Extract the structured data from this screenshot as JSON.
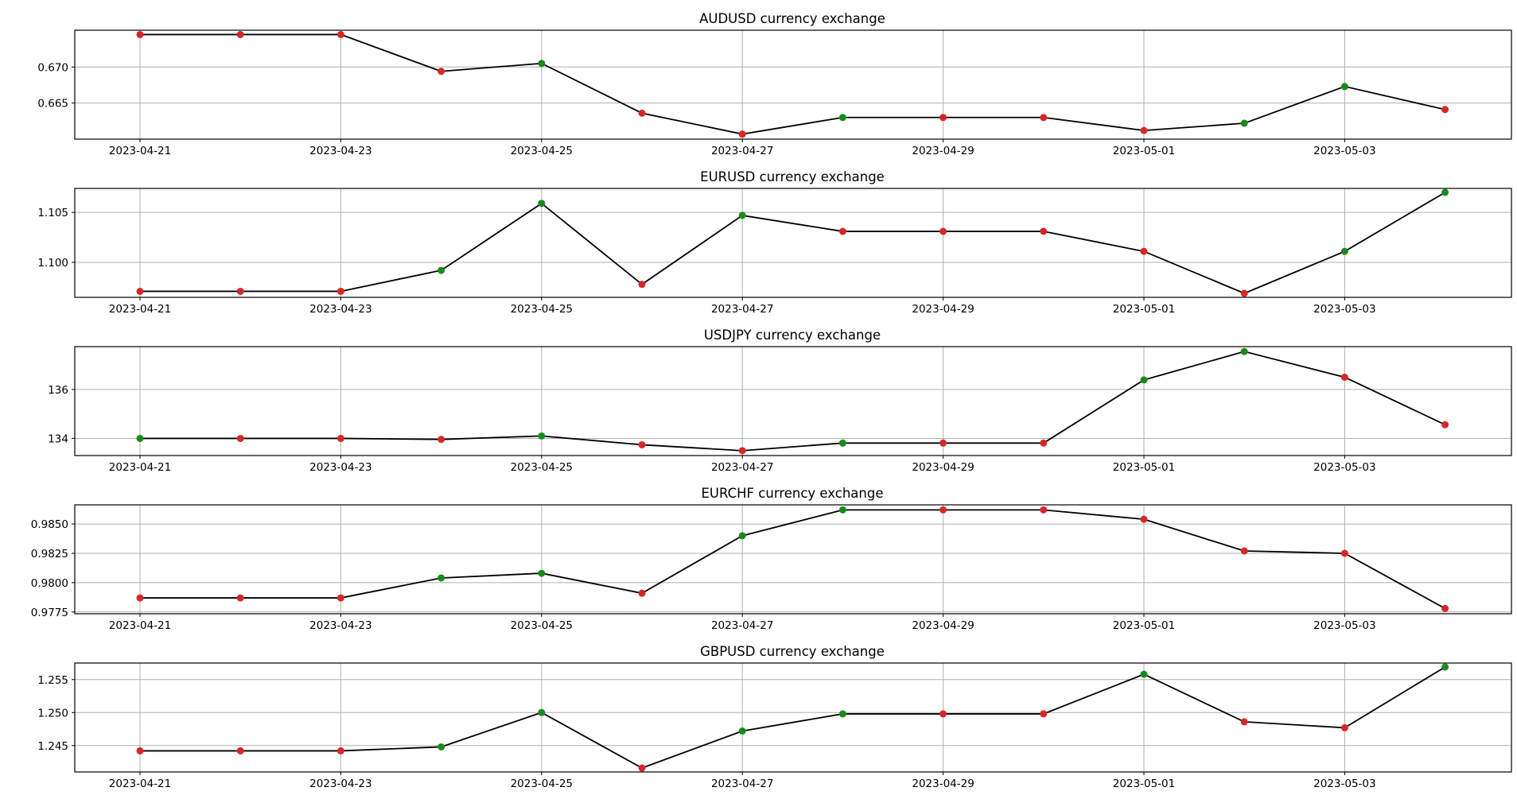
{
  "chart_data": [
    {
      "type": "line",
      "title": "AUDUSD currency exchange",
      "x": [
        "2023-04-21",
        "2023-04-22",
        "2023-04-23",
        "2023-04-24",
        "2023-04-25",
        "2023-04-26",
        "2023-04-27",
        "2023-04-28",
        "2023-04-29",
        "2023-04-30",
        "2023-05-01",
        "2023-05-02",
        "2023-05-03",
        "2023-05-04"
      ],
      "values": [
        0.6745,
        0.6745,
        0.6745,
        0.6694,
        0.6705,
        0.6636,
        0.6607,
        0.663,
        0.663,
        0.663,
        0.6612,
        0.6622,
        0.6673,
        0.6641
      ],
      "marker_colors": [
        "red",
        "red",
        "red",
        "red",
        "green",
        "red",
        "red",
        "green",
        "red",
        "red",
        "red",
        "green",
        "green",
        "red"
      ],
      "xticks": [
        "2023-04-21",
        "2023-04-23",
        "2023-04-25",
        "2023-04-27",
        "2023-04-29",
        "2023-05-01",
        "2023-05-03"
      ],
      "yticks": [
        0.665,
        0.67
      ],
      "ytick_labels": [
        "0.665",
        "0.670"
      ],
      "ylim": [
        0.66,
        0.6751
      ],
      "grid": true
    },
    {
      "type": "line",
      "title": "EURUSD currency exchange",
      "x": [
        "2023-04-21",
        "2023-04-22",
        "2023-04-23",
        "2023-04-24",
        "2023-04-25",
        "2023-04-26",
        "2023-04-27",
        "2023-04-28",
        "2023-04-29",
        "2023-04-30",
        "2023-05-01",
        "2023-05-02",
        "2023-05-03",
        "2023-05-04"
      ],
      "values": [
        1.0971,
        1.0971,
        1.0971,
        1.0992,
        1.1059,
        1.0978,
        1.1047,
        1.1031,
        1.1031,
        1.1031,
        1.1011,
        1.0969,
        1.1011,
        1.107
      ],
      "marker_colors": [
        "red",
        "red",
        "red",
        "green",
        "green",
        "red",
        "green",
        "red",
        "red",
        "red",
        "red",
        "red",
        "green",
        "green"
      ],
      "xticks": [
        "2023-04-21",
        "2023-04-23",
        "2023-04-25",
        "2023-04-27",
        "2023-04-29",
        "2023-05-01",
        "2023-05-03"
      ],
      "yticks": [
        1.1,
        1.105
      ],
      "ytick_labels": [
        "1.100",
        "1.105"
      ],
      "ylim": [
        1.0965,
        1.1074
      ],
      "grid": true
    },
    {
      "type": "line",
      "title": "USDJPY currency exchange",
      "x": [
        "2023-04-21",
        "2023-04-22",
        "2023-04-23",
        "2023-04-24",
        "2023-04-25",
        "2023-04-26",
        "2023-04-27",
        "2023-04-28",
        "2023-04-29",
        "2023-04-30",
        "2023-05-01",
        "2023-05-02",
        "2023-05-03",
        "2023-05-04"
      ],
      "values": [
        134.0,
        134.0,
        134.0,
        133.96,
        134.1,
        133.74,
        133.5,
        133.81,
        133.81,
        133.81,
        136.39,
        137.55,
        136.5,
        134.56
      ],
      "marker_colors": [
        "green",
        "red",
        "red",
        "red",
        "green",
        "red",
        "red",
        "green",
        "red",
        "red",
        "green",
        "green",
        "red",
        "red"
      ],
      "xticks": [
        "2023-04-21",
        "2023-04-23",
        "2023-04-25",
        "2023-04-27",
        "2023-04-29",
        "2023-05-01",
        "2023-05-03"
      ],
      "yticks": [
        134,
        136
      ],
      "ytick_labels": [
        "134",
        "136"
      ],
      "ylim": [
        133.3,
        137.75
      ],
      "grid": true
    },
    {
      "type": "line",
      "title": "EURCHF currency exchange",
      "x": [
        "2023-04-21",
        "2023-04-22",
        "2023-04-23",
        "2023-04-24",
        "2023-04-25",
        "2023-04-26",
        "2023-04-27",
        "2023-04-28",
        "2023-04-29",
        "2023-04-30",
        "2023-05-01",
        "2023-05-02",
        "2023-05-03",
        "2023-05-04"
      ],
      "values": [
        0.9787,
        0.9787,
        0.9787,
        0.9804,
        0.9808,
        0.9791,
        0.984,
        0.9862,
        0.9862,
        0.9862,
        0.9854,
        0.9827,
        0.9825,
        0.9778
      ],
      "marker_colors": [
        "red",
        "red",
        "red",
        "green",
        "green",
        "red",
        "green",
        "green",
        "red",
        "red",
        "red",
        "red",
        "red",
        "red"
      ],
      "xticks": [
        "2023-04-21",
        "2023-04-23",
        "2023-04-25",
        "2023-04-27",
        "2023-04-29",
        "2023-05-01",
        "2023-05-03"
      ],
      "yticks": [
        0.9775,
        0.98,
        0.9825,
        0.985
      ],
      "ytick_labels": [
        "0.9775",
        "0.9800",
        "0.9825",
        "0.9850"
      ],
      "ylim": [
        0.97735,
        0.98663
      ],
      "grid": true
    },
    {
      "type": "line",
      "title": "GBPUSD currency exchange",
      "x": [
        "2023-04-21",
        "2023-04-22",
        "2023-04-23",
        "2023-04-24",
        "2023-04-25",
        "2023-04-26",
        "2023-04-27",
        "2023-04-28",
        "2023-04-29",
        "2023-04-30",
        "2023-05-01",
        "2023-05-02",
        "2023-05-03",
        "2023-05-04"
      ],
      "values": [
        1.2442,
        1.2442,
        1.2442,
        1.2448,
        1.25,
        1.2416,
        1.2472,
        1.2498,
        1.2498,
        1.2498,
        1.2558,
        1.2486,
        1.2477,
        1.2569
      ],
      "marker_colors": [
        "red",
        "red",
        "red",
        "green",
        "green",
        "red",
        "green",
        "green",
        "red",
        "red",
        "green",
        "red",
        "red",
        "green"
      ],
      "xticks": [
        "2023-04-21",
        "2023-04-23",
        "2023-04-25",
        "2023-04-27",
        "2023-04-29",
        "2023-05-01",
        "2023-05-03"
      ],
      "yticks": [
        1.245,
        1.25,
        1.255
      ],
      "ytick_labels": [
        "1.245",
        "1.250",
        "1.255"
      ],
      "ylim": [
        1.241,
        1.2575
      ],
      "grid": true
    }
  ],
  "colors": {
    "line": "#000000",
    "green": "#1a8a1a",
    "red": "#d62728",
    "grid": "#b0b0b0"
  }
}
